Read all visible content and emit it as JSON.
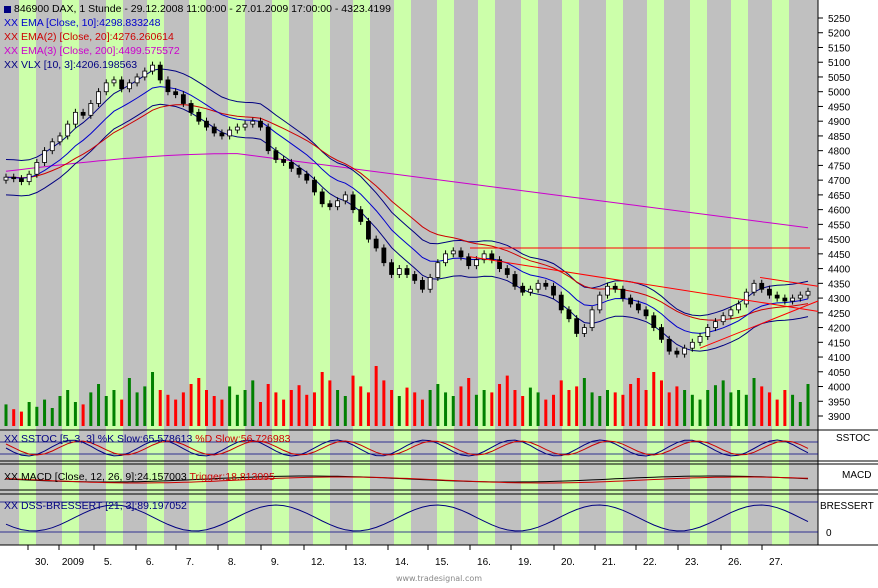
{
  "header": {
    "main_legend": [
      {
        "text": "846900  DAX, 1 Stunde - 29.12.2008 11:00:00 - 27.01.2009 17:00:00 - 4323.4199",
        "color": "#000000",
        "marker_icon": "square-icon"
      },
      {
        "text": "EMA [Close, 10]:4298.833248",
        "color": "#0000cc",
        "marker_icon": "xx-icon"
      },
      {
        "text": "EMA(2) [Close, 20]:4276.260614",
        "color": "#cc0000",
        "marker_icon": "xx-icon"
      },
      {
        "text": "EMA(3) [Close, 200]:4499.575572",
        "color": "#cc00cc",
        "marker_icon": "xx-icon"
      },
      {
        "text": "VLX [10, 3]:4206.198563",
        "color": "#000080",
        "marker_icon": "xx-icon"
      }
    ],
    "sstoc_legend": [
      {
        "text": "SSTOC [5, 3, 3] %K Slow:65.578613",
        "color": "#000080"
      },
      {
        "text": "%D Slow:56.726983",
        "color": "#cc0000"
      }
    ],
    "macd_legend": [
      {
        "text": "MACD [Close, 12, 26, 9]:24.157003",
        "color": "#000000"
      },
      {
        "text": "Trigger:18.813095",
        "color": "#cc0000"
      }
    ],
    "dss_legend": [
      {
        "text": "DSS-BRESSERT [21, 3]:89.197052",
        "color": "#000080"
      }
    ]
  },
  "panel_tags": {
    "sstoc": "SSTOC",
    "macd": "MACD",
    "dss": "BRESSERT",
    "dss_zero": "0"
  },
  "footer": {
    "text": "www.tradesignal.com"
  },
  "colors": {
    "band": "#ccffaa",
    "background": "#c0c0c0",
    "up_volume": "#008000",
    "down_volume": "#ff0000",
    "ema10": "#0000cc",
    "ema20": "#cc0000",
    "ema200": "#cc00cc",
    "vlx": "#000080",
    "trendline": "#ff0000"
  },
  "chart_data": [
    {
      "type": "candlestick",
      "title": "846900  DAX, 1 Stunde - 29.12.2008 11:00:00 - 27.01.2009 17:00:00 - 4323.4199",
      "y_ticks": [
        3900,
        3950,
        4000,
        4050,
        4100,
        4150,
        4200,
        4250,
        4300,
        4350,
        4400,
        4450,
        4500,
        4550,
        4600,
        4650,
        4700,
        4750,
        4800,
        4850,
        4900,
        4950,
        5000,
        5050,
        5100,
        5150,
        5200,
        5250
      ],
      "ylim": [
        3880,
        5280
      ],
      "x_tick_labels": [
        "30.",
        "2009",
        "5.",
        "6.",
        "7.",
        "8.",
        "9.",
        "12.",
        "13.",
        "14.",
        "15.",
        "16.",
        "19.",
        "20.",
        "21.",
        "22.",
        "23.",
        "26.",
        "27."
      ],
      "close": [
        4710,
        4705,
        4695,
        4720,
        4760,
        4800,
        4830,
        4850,
        4890,
        4930,
        4920,
        4960,
        5000,
        5030,
        5040,
        5010,
        5030,
        5050,
        5070,
        5090,
        5040,
        5000,
        4990,
        4960,
        4930,
        4900,
        4880,
        4860,
        4850,
        4870,
        4880,
        4890,
        4900,
        4880,
        4800,
        4770,
        4760,
        4740,
        4720,
        4700,
        4660,
        4620,
        4610,
        4630,
        4650,
        4600,
        4560,
        4500,
        4470,
        4420,
        4380,
        4400,
        4380,
        4360,
        4330,
        4370,
        4420,
        4450,
        4460,
        4440,
        4410,
        4430,
        4450,
        4430,
        4400,
        4380,
        4340,
        4320,
        4330,
        4350,
        4340,
        4310,
        4260,
        4230,
        4180,
        4200,
        4260,
        4310,
        4340,
        4330,
        4300,
        4280,
        4260,
        4240,
        4200,
        4160,
        4120,
        4110,
        4130,
        4150,
        4170,
        4200,
        4220,
        4240,
        4260,
        4280,
        4320,
        4350,
        4330,
        4310,
        4300,
        4290,
        4300,
        4310,
        4323
      ],
      "volume": [
        18,
        14,
        12,
        20,
        16,
        22,
        15,
        25,
        30,
        20,
        18,
        28,
        35,
        25,
        30,
        22,
        40,
        28,
        33,
        45,
        30,
        26,
        22,
        28,
        35,
        40,
        30,
        25,
        22,
        33,
        26,
        30,
        38,
        20,
        35,
        28,
        22,
        30,
        34,
        26,
        28,
        45,
        38,
        30,
        25,
        42,
        33,
        28,
        50,
        38,
        30,
        25,
        32,
        28,
        22,
        30,
        35,
        28,
        25,
        33,
        40,
        26,
        30,
        28,
        35,
        42,
        30,
        25,
        32,
        28,
        22,
        26,
        38,
        30,
        33,
        40,
        28,
        25,
        30,
        28,
        26,
        35,
        40,
        30,
        45,
        38,
        28,
        33,
        30,
        26,
        22,
        30,
        34,
        38,
        28,
        30,
        26,
        40,
        33,
        28,
        22,
        30,
        26,
        20,
        35
      ]
    },
    {
      "type": "line",
      "name": "SSTOC [5, 3, 3]",
      "series": [
        {
          "name": "%K Slow",
          "value_label": "65.578613"
        },
        {
          "name": "%D Slow",
          "value_label": "56.726983"
        }
      ]
    },
    {
      "type": "line",
      "name": "MACD [Close, 12, 26, 9]",
      "series": [
        {
          "name": "MACD",
          "value_label": "24.157003"
        },
        {
          "name": "Trigger",
          "value_label": "18.813095"
        }
      ]
    },
    {
      "type": "line",
      "name": "DSS-BRESSERT [21, 3]",
      "series": [
        {
          "name": "DSS-BRESSERT",
          "value_label": "89.197052"
        }
      ]
    }
  ]
}
